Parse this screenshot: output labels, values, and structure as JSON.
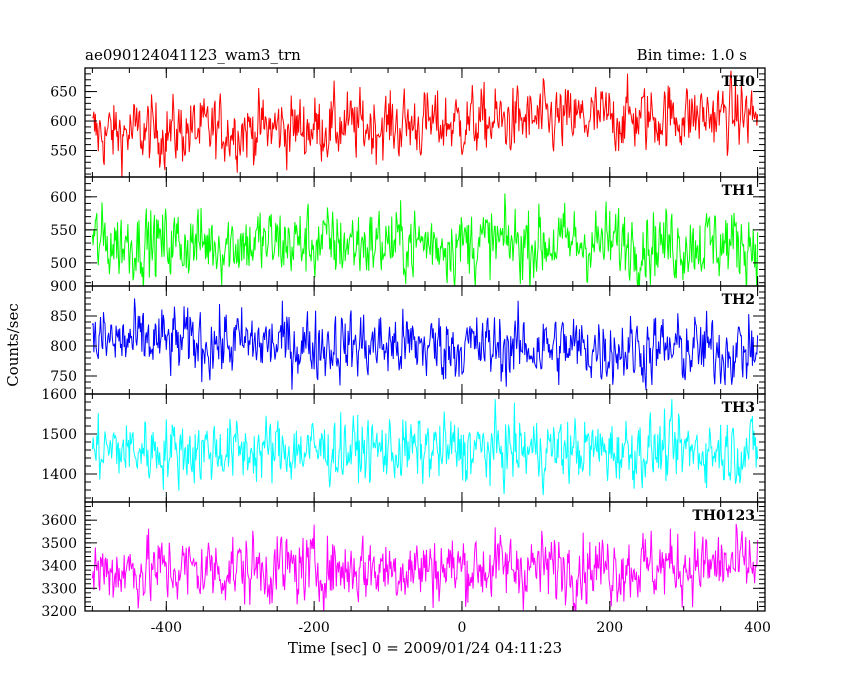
{
  "chart_data": {
    "type": "line",
    "title_left": "ae090124041123_wam3_trn",
    "title_right": "Bin time: 1.0 s",
    "xlabel": "Time [sec] 0 = 2009/01/24 04:11:23",
    "ylabel": "Counts/sec",
    "xlim": [
      -510,
      410
    ],
    "x_ticks": [
      -400,
      -200,
      0,
      200,
      400
    ],
    "x_range": [
      -500,
      400
    ],
    "bin_time": 1.0,
    "series": [
      {
        "name": "TH0",
        "color": "#ff0000",
        "ylim": [
          505,
          690
        ],
        "y_ticks": [
          550,
          600,
          650
        ],
        "mean_start": 578,
        "mean_end": 612,
        "spread": 28
      },
      {
        "name": "TH1",
        "color": "#00ff00",
        "ylim": [
          465,
          630
        ],
        "y_ticks": [
          500,
          550,
          600
        ],
        "mean_start": 530,
        "mean_end": 530,
        "spread": 27
      },
      {
        "name": "TH2",
        "color": "#0000ff",
        "ylim": [
          720,
          900
        ],
        "y_ticks": [
          750,
          800,
          850,
          900
        ],
        "mean_start": 808,
        "mean_end": 792,
        "spread": 28
      },
      {
        "name": "TH3",
        "color": "#00ffff",
        "ylim": [
          1330,
          1600
        ],
        "y_ticks": [
          1400,
          1500,
          1600
        ],
        "mean_start": 1460,
        "mean_end": 1460,
        "spread": 40
      },
      {
        "name": "TH0123",
        "color": "#ff00ff",
        "ylim": [
          3200,
          3680
        ],
        "y_ticks": [
          3200,
          3300,
          3400,
          3500,
          3600
        ],
        "mean_start": 3380,
        "mean_end": 3400,
        "spread": 75
      }
    ]
  }
}
